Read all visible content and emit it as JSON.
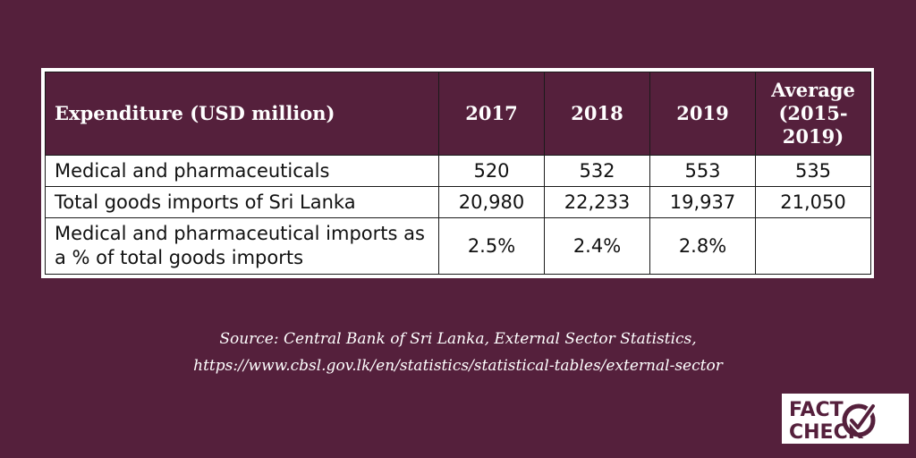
{
  "table": {
    "header": [
      "Expenditure (USD million)",
      "2017",
      "2018",
      "2019",
      "Average (2015-2019)"
    ],
    "rows": [
      {
        "label": "Medical and pharmaceuticals",
        "values": [
          "520",
          "532",
          "553",
          "535"
        ]
      },
      {
        "label": "Total goods imports of Sri Lanka",
        "values": [
          "20,980",
          "22,233",
          "19,937",
          "21,050"
        ]
      },
      {
        "label": "Medical and pharmaceutical imports as a % of total goods imports",
        "values": [
          "2.5%",
          "2.4%",
          "2.8%",
          ""
        ]
      }
    ]
  },
  "source": {
    "line1": "Source: Central Bank of Sri Lanka, External Sector Statistics,",
    "line2": "https://www.cbsl.gov.lk/en/statistics/statistical-tables/external-sector"
  },
  "logo": {
    "text_top": "FACT",
    "text_bottom": "CHECK"
  },
  "colors": {
    "background": "#55203c",
    "header_bg": "#55203c",
    "logo_text": "#55203c"
  }
}
